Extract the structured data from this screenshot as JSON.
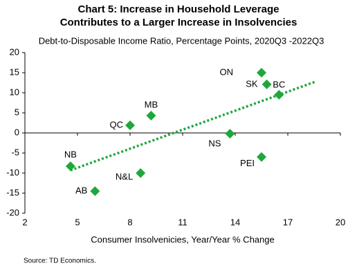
{
  "chart_data": {
    "type": "scatter",
    "title": [
      "Chart 5: Increase in Household Leverage",
      "Contributes to a Larger Increase in Insolvencies"
    ],
    "subtitle": "Debt-to-Disposable Income Ratio, Percentage Points, 2020Q3 -2022Q3",
    "x_label": "Consumer Insolvenicies, Year/Year % Change",
    "source": "Source: TD Economics.",
    "series": [
      {
        "color": "#1fa83a",
        "labels": [
          "ON",
          "SK",
          "BC",
          "MB",
          "QC",
          "NS",
          "PEI",
          "NB",
          "N&L",
          "AB"
        ],
        "x": [
          15.5,
          15.8,
          16.5,
          9.2,
          8.0,
          13.7,
          15.5,
          4.6,
          8.6,
          6.0
        ],
        "values": [
          15,
          12.1,
          9.5,
          4.3,
          1.9,
          -0.2,
          -6,
          -8.3,
          -10,
          -14.5
        ]
      }
    ],
    "trendline": {
      "color": "#1fa83a",
      "x": [
        4.6,
        18.6
      ],
      "values": [
        -9.3,
        12.8
      ]
    },
    "xlim": [
      2,
      20
    ],
    "xticks": [
      2,
      5,
      8,
      11,
      14,
      17,
      20
    ],
    "ylim": [
      -20,
      20
    ],
    "yticks": [
      -20,
      -15,
      -10,
      -5,
      0,
      5,
      10,
      15,
      20
    ]
  }
}
